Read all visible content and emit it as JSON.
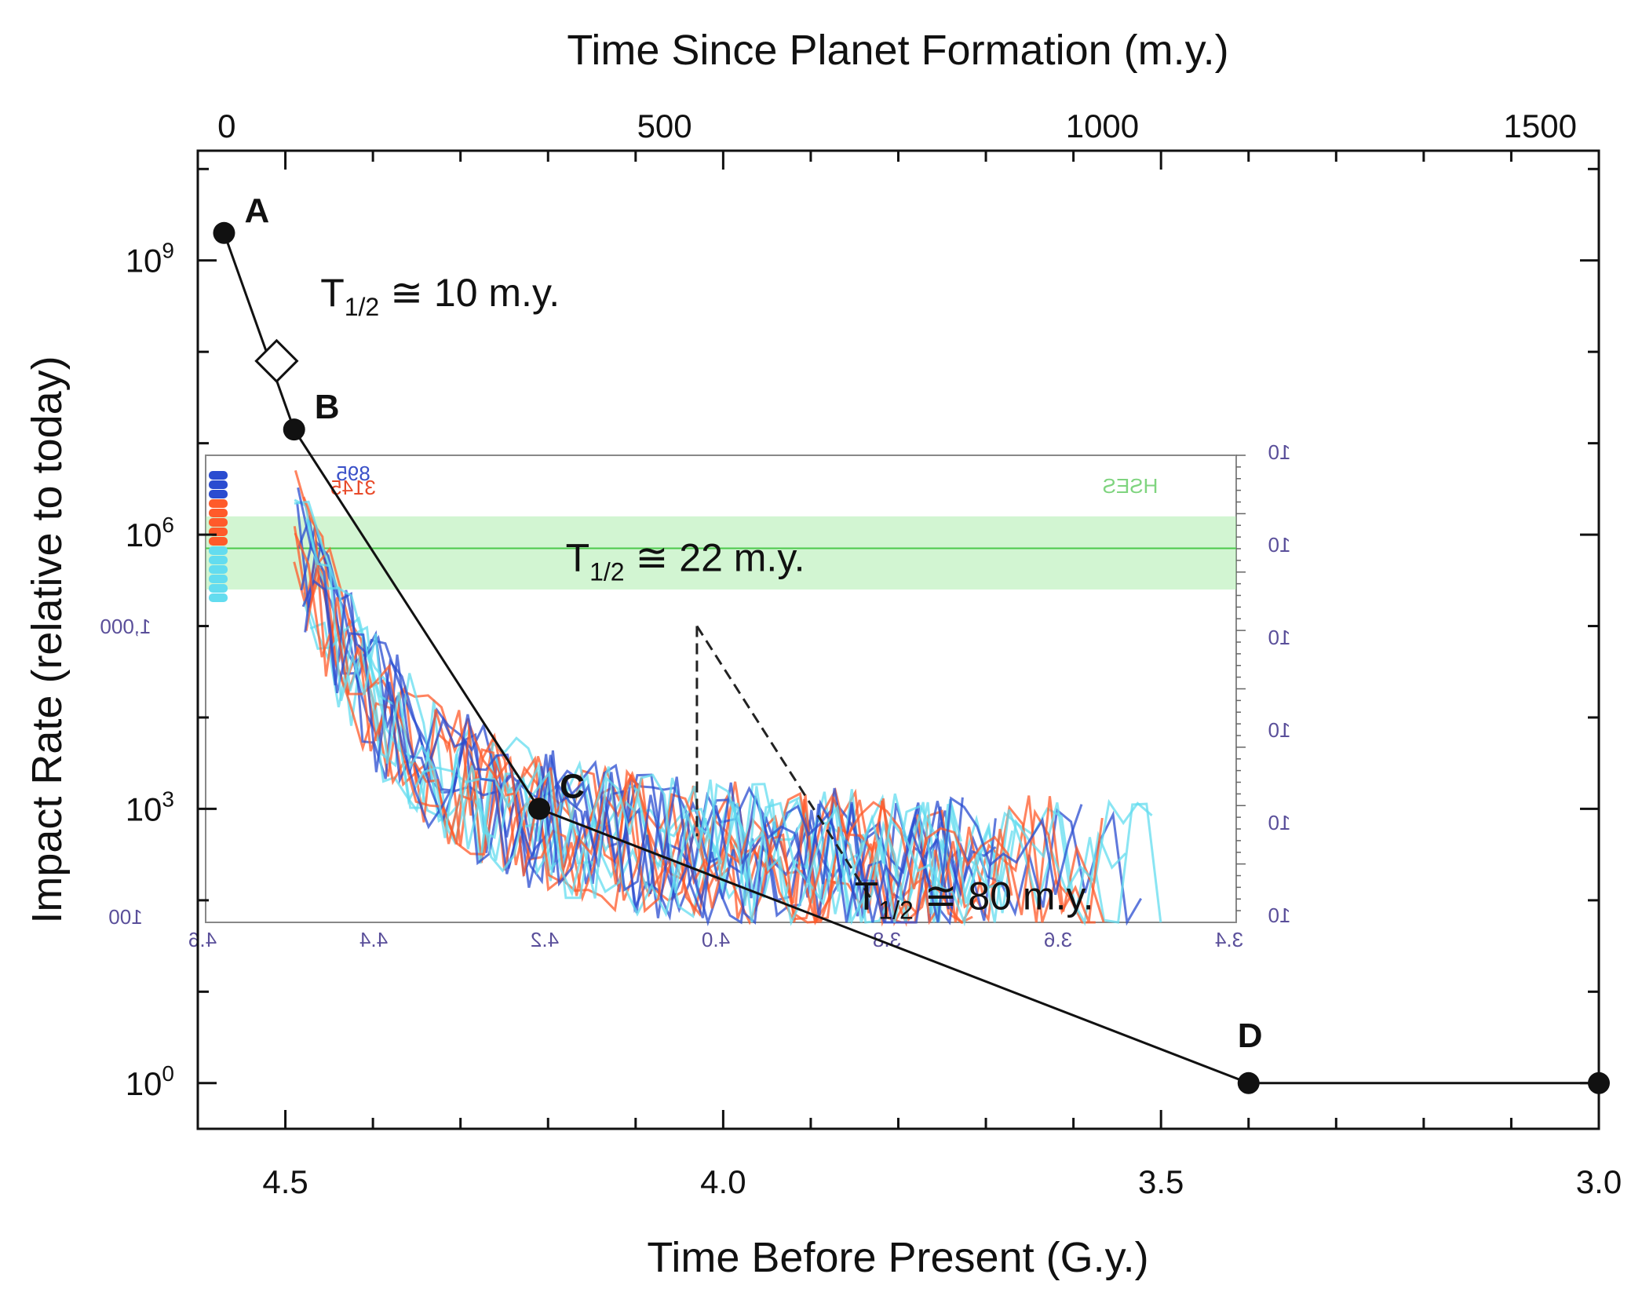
{
  "chart_data": {
    "type": "line",
    "title": "",
    "xlabel": "Time Before Present (G.y.)",
    "x2label": "Time Since Planet Formation (m.y.)",
    "ylabel": "Impact Rate (relative to today)",
    "xlim": [
      4.6,
      3.0
    ],
    "x_reversed": true,
    "x_ticks": [
      {
        "value": 4.5,
        "label": "4.5"
      },
      {
        "value": 4.0,
        "label": "4.0"
      },
      {
        "value": 3.5,
        "label": "3.5"
      },
      {
        "value": 3.0,
        "label": "3.0"
      }
    ],
    "x2_ticks": [
      {
        "value": 0,
        "label": "0"
      },
      {
        "value": 500,
        "label": "500"
      },
      {
        "value": 1000,
        "label": "1000"
      },
      {
        "value": 1500,
        "label": "1500"
      }
    ],
    "ylim_log10": [
      -0.5,
      10.2
    ],
    "y_scale": "log",
    "y_ticks": [
      {
        "exponent": 9,
        "base": "10",
        "sup": "9"
      },
      {
        "exponent": 6,
        "base": "10",
        "sup": "6"
      },
      {
        "exponent": 3,
        "base": "10",
        "sup": "3"
      },
      {
        "exponent": 0,
        "base": "10",
        "sup": "0"
      }
    ],
    "series": [
      {
        "points": [
          {
            "x": 4.57,
            "y_log10": 9.3,
            "label": "A"
          },
          {
            "x": 4.49,
            "y_log10": 7.15,
            "label": "B"
          },
          {
            "x": 4.21,
            "y_log10": 3.0,
            "label": "C"
          },
          {
            "x": 3.4,
            "y_log10": 0.0,
            "label": "D"
          },
          {
            "x": 3.0,
            "y_log10": 0.0,
            "label": ""
          }
        ]
      }
    ],
    "diamond_marker": {
      "x": 4.51,
      "y_log10": 7.9
    },
    "annotations": [
      {
        "main": "T",
        "sub": "1/2",
        "rest": " ≅ 10 m.y.",
        "x": 4.46,
        "y_log10": 8.5
      },
      {
        "main": "T",
        "sub": "1/2",
        "rest": " ≅ 22 m.y.",
        "x": 4.18,
        "y_log10": 5.6
      },
      {
        "main": "T",
        "sub": "1/2",
        "rest": " ≅ 80 m.y.",
        "x": 3.85,
        "y_log10": 1.9
      }
    ],
    "inset": {
      "band_y_log10": [
        5.4,
        6.2
      ],
      "band_color": "#9be89b",
      "series_colors": [
        "#ff5a2a",
        "#2a4cd0",
        "#63dcef"
      ],
      "mirrored_x_labels": [
        "4.6",
        "4.4",
        "4.2",
        "4.0",
        "3.8",
        "3.6",
        "3.4"
      ],
      "mirrored_y_labels": [
        "100",
        "1,000"
      ],
      "mirrored_right_labels": [
        "10",
        "10",
        "10",
        "10",
        "10",
        "10"
      ],
      "mirrored_legend": [
        "895",
        "3145",
        "HSES"
      ]
    }
  }
}
